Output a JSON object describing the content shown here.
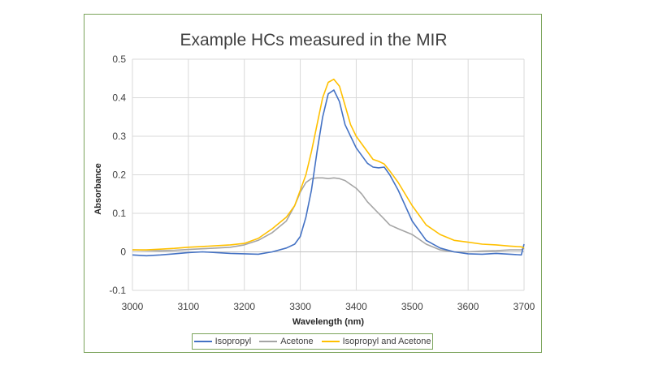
{
  "chart_data": {
    "type": "line",
    "title": "Example HCs measured in the MIR",
    "xlabel": "Wavelength (nm)",
    "ylabel": "Absorbance",
    "xlim": [
      3000,
      3700
    ],
    "ylim": [
      -0.1,
      0.5
    ],
    "x_ticks": [
      3000,
      3100,
      3200,
      3300,
      3400,
      3500,
      3600,
      3700
    ],
    "y_ticks": [
      -0.1,
      0,
      0.1,
      0.2,
      0.3,
      0.4,
      0.5
    ],
    "y_tick_labels": [
      "-0.1",
      "0",
      "0.1",
      "0.2",
      "0.3",
      "0.4",
      "0.5"
    ],
    "grid": true,
    "legend_position": "bottom",
    "x": [
      3000,
      3025,
      3050,
      3075,
      3100,
      3125,
      3150,
      3175,
      3200,
      3225,
      3250,
      3275,
      3290,
      3300,
      3310,
      3320,
      3330,
      3340,
      3350,
      3360,
      3370,
      3380,
      3390,
      3400,
      3410,
      3420,
      3430,
      3440,
      3450,
      3460,
      3475,
      3500,
      3525,
      3550,
      3575,
      3600,
      3625,
      3650,
      3675,
      3695,
      3700
    ],
    "series": [
      {
        "name": "Isopropyl",
        "color": "#4472c4",
        "values": [
          -0.008,
          -0.01,
          -0.008,
          -0.005,
          -0.002,
          0.0,
          -0.002,
          -0.004,
          -0.005,
          -0.006,
          0.0,
          0.01,
          0.02,
          0.04,
          0.09,
          0.16,
          0.26,
          0.35,
          0.41,
          0.42,
          0.39,
          0.33,
          0.3,
          0.27,
          0.25,
          0.23,
          0.22,
          0.218,
          0.22,
          0.2,
          0.16,
          0.08,
          0.03,
          0.01,
          0.0,
          -0.005,
          -0.006,
          -0.004,
          -0.006,
          -0.008,
          0.02
        ]
      },
      {
        "name": "Acetone",
        "color": "#a5a5a5",
        "values": [
          0.005,
          0.004,
          0.003,
          0.004,
          0.006,
          0.008,
          0.01,
          0.012,
          0.018,
          0.03,
          0.05,
          0.08,
          0.12,
          0.155,
          0.18,
          0.19,
          0.192,
          0.192,
          0.19,
          0.192,
          0.19,
          0.185,
          0.175,
          0.165,
          0.15,
          0.13,
          0.115,
          0.1,
          0.085,
          0.07,
          0.06,
          0.045,
          0.02,
          0.005,
          0.0,
          0.0,
          0.002,
          0.003,
          0.005,
          0.005,
          0.01
        ]
      },
      {
        "name": "Isopropyl and Acetone",
        "color": "#ffc000",
        "values": [
          0.005,
          0.005,
          0.007,
          0.009,
          0.012,
          0.014,
          0.016,
          0.018,
          0.022,
          0.035,
          0.06,
          0.09,
          0.12,
          0.16,
          0.2,
          0.26,
          0.33,
          0.4,
          0.44,
          0.448,
          0.43,
          0.38,
          0.33,
          0.3,
          0.28,
          0.26,
          0.24,
          0.235,
          0.228,
          0.21,
          0.18,
          0.12,
          0.07,
          0.045,
          0.03,
          0.025,
          0.02,
          0.018,
          0.015,
          0.013,
          0.01
        ]
      }
    ]
  }
}
